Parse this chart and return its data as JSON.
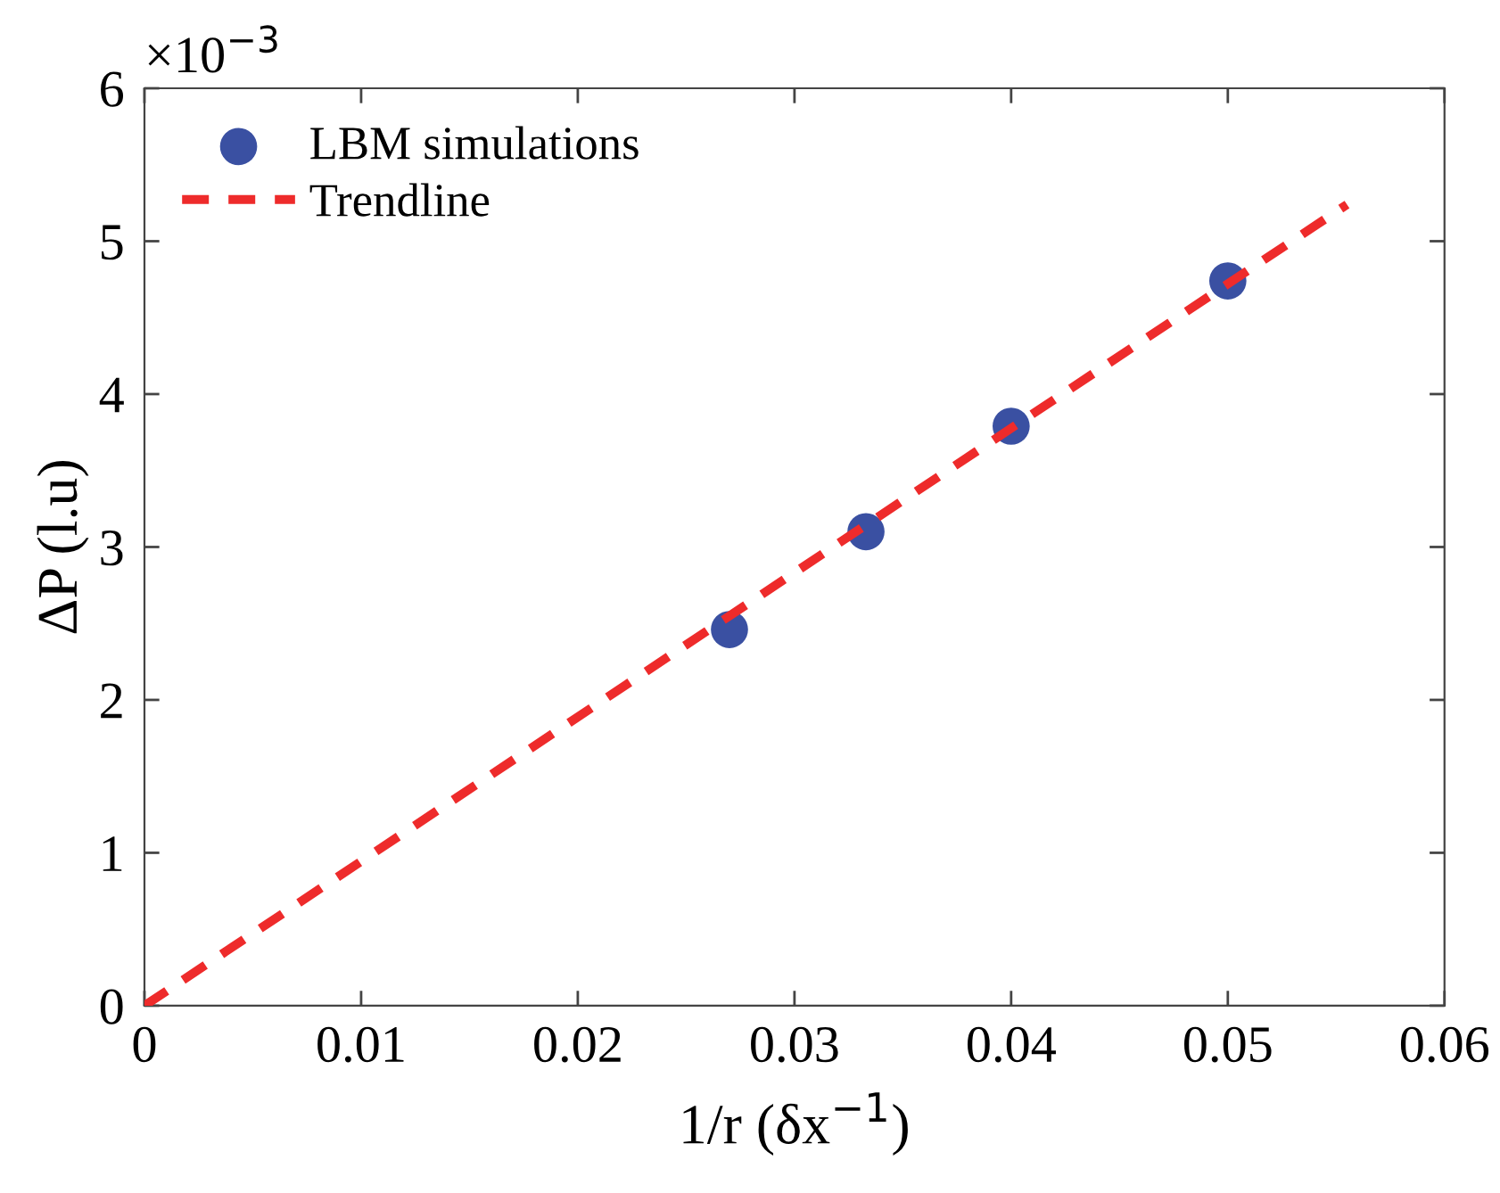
{
  "chart_data": {
    "type": "scatter",
    "xlabel": "1/r (δx$^{−1}$)",
    "ylabel": "ΔP (l.u)",
    "annotations": [
      "×10$^{−3}$"
    ],
    "xlim": [
      0,
      0.06
    ],
    "xticks": [
      0,
      0.01,
      0.02,
      0.03,
      0.04,
      0.05,
      0.06
    ],
    "ylim": [
      0,
      6
    ],
    "yticks": [
      0,
      1,
      2,
      3,
      4,
      5,
      6
    ],
    "series": [
      {
        "name": "LBM simulations",
        "color": "#3a50a2",
        "marker": "circle",
        "x": [
          0.027,
          0.0333,
          0.04,
          0.05
        ],
        "values": [
          2.46,
          3.1,
          3.79,
          4.74
        ]
      },
      {
        "name": "Trendline",
        "type": "line",
        "color": "#ee2b2b",
        "line_style": "dashed",
        "marker": "none",
        "x": [
          0,
          0.0555
        ],
        "values": [
          0,
          5.24
        ]
      }
    ],
    "legend": "top left",
    "grid": false
  }
}
